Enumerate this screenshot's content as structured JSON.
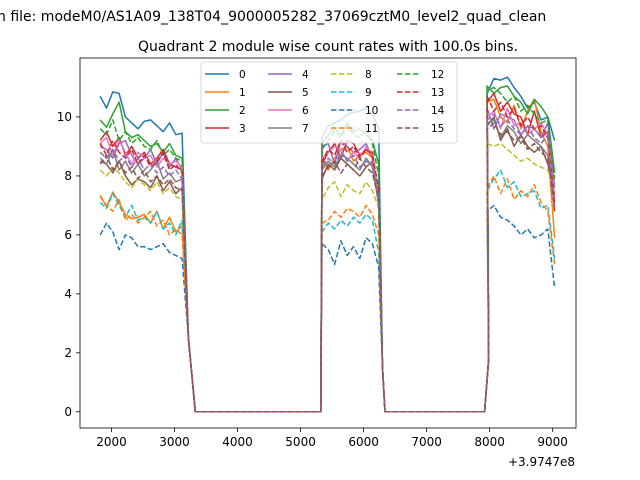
{
  "header": {
    "file_line": "n file: modeM0/AS1A09_138T04_9000005282_37069cztM0_level2_quad_clean",
    "title": "Quadrant 2 module wise count rates with 100.0s bins."
  },
  "chart_data": {
    "type": "line",
    "title": "Quadrant 2 module wise count rates with 100.0s bins.",
    "xlabel": "",
    "ylabel": "",
    "x_offset_label": "+3.9747e8",
    "xlim": [
      1500,
      9370
    ],
    "ylim": [
      -0.55,
      12.0
    ],
    "xticks": [
      2000,
      3000,
      4000,
      5000,
      6000,
      7000,
      8000,
      9000
    ],
    "xtick_labels": [
      "2000",
      "3000",
      "4000",
      "5000",
      "6000",
      "7000",
      "8000",
      "9000"
    ],
    "yticks": [
      0,
      2,
      4,
      6,
      8,
      10
    ],
    "ytick_labels": [
      "0",
      "2",
      "4",
      "6",
      "8",
      "10"
    ],
    "legend": {
      "position": "top-center",
      "columns": 4
    },
    "segments": [
      {
        "start": 1820,
        "gap": [
          3220,
          3320
        ],
        "n": 14
      },
      {
        "start": 5340,
        "gap": [
          5300,
          5420
        ],
        "n": 10,
        "end": 6240
      },
      {
        "start": 7960,
        "n": 11,
        "end": 9030
      }
    ],
    "series": [
      {
        "name": "0",
        "color": "#1f77b4",
        "dash": "solid",
        "seg1": [
          10.7,
          10.3,
          10.85,
          10.8,
          10.0,
          9.8,
          9.6,
          9.85,
          9.9,
          9.7,
          9.5,
          9.8,
          9.4,
          9.45
        ],
        "seg2": [
          9.3,
          9.7,
          9.8,
          9.9,
          10.1,
          10.15,
          10.2,
          10.3,
          10.1,
          9.6
        ],
        "seg3": [
          10.8,
          11.3,
          11.25,
          11.35,
          11.0,
          10.7,
          10.3,
          10.5,
          9.9,
          10.0,
          9.2
        ]
      },
      {
        "name": "1",
        "color": "#ff7f0e",
        "dash": "solid",
        "seg1": [
          7.35,
          6.95,
          7.45,
          7.1,
          6.7,
          6.55,
          6.6,
          6.7,
          6.4,
          6.8,
          6.2,
          6.6,
          6.1,
          6.3
        ],
        "seg2": [
          8.6,
          8.2,
          8.6,
          8.9,
          9.0,
          8.5,
          8.7,
          8.8,
          8.6,
          7.4
        ],
        "seg3": [
          10.5,
          10.6,
          10.0,
          9.8,
          10.4,
          9.6,
          10.2,
          10.6,
          9.5,
          9.0,
          5.9
        ]
      },
      {
        "name": "2",
        "color": "#2ca02c",
        "dash": "solid",
        "seg1": [
          9.9,
          9.65,
          10.1,
          10.5,
          9.5,
          9.3,
          9.4,
          9.2,
          9.0,
          9.1,
          8.8,
          9.1,
          8.7,
          8.6
        ],
        "seg2": [
          9.1,
          9.4,
          9.6,
          9.4,
          9.8,
          9.5,
          9.6,
          9.4,
          9.2,
          8.4
        ],
        "seg3": [
          11.05,
          10.8,
          11.0,
          11.05,
          10.7,
          10.5,
          10.1,
          10.6,
          10.35,
          10.0,
          8.1
        ]
      },
      {
        "name": "3",
        "color": "#d62728",
        "dash": "solid",
        "seg1": [
          9.2,
          9.5,
          9.0,
          9.3,
          8.7,
          9.0,
          8.6,
          8.8,
          8.4,
          8.6,
          8.9,
          8.4,
          8.3,
          8.2
        ],
        "seg2": [
          8.4,
          8.8,
          9.1,
          8.6,
          9.2,
          9.1,
          8.7,
          8.9,
          8.8,
          7.3
        ],
        "seg3": [
          10.5,
          10.8,
          10.2,
          10.5,
          10.1,
          10.0,
          9.4,
          10.2,
          9.3,
          9.5,
          6.8
        ]
      },
      {
        "name": "4",
        "color": "#9467bd",
        "dash": "solid",
        "seg1": [
          9.0,
          8.9,
          8.6,
          9.1,
          9.2,
          8.7,
          8.4,
          8.6,
          8.9,
          8.4,
          8.8,
          8.3,
          8.6,
          8.2
        ],
        "seg2": [
          9.0,
          9.1,
          8.4,
          9.2,
          9.0,
          8.8,
          8.9,
          9.1,
          8.6,
          7.0
        ],
        "seg3": [
          10.3,
          9.6,
          10.1,
          10.0,
          9.9,
          9.4,
          9.7,
          9.6,
          9.3,
          9.8,
          7.6
        ]
      },
      {
        "name": "5",
        "color": "#8c564b",
        "dash": "solid",
        "seg1": [
          8.5,
          8.4,
          8.1,
          8.5,
          8.0,
          7.7,
          7.9,
          7.8,
          7.6,
          8.0,
          7.5,
          7.8,
          7.4,
          7.6
        ],
        "seg2": [
          7.9,
          8.4,
          8.2,
          8.6,
          8.4,
          8.2,
          8.0,
          8.3,
          8.5,
          7.0
        ],
        "seg3": [
          9.7,
          10.0,
          9.2,
          9.6,
          9.0,
          9.4,
          9.0,
          8.8,
          9.0,
          8.4,
          7.4
        ]
      },
      {
        "name": "6",
        "color": "#e377c2",
        "dash": "solid",
        "seg1": [
          9.1,
          9.3,
          8.7,
          9.2,
          8.8,
          8.4,
          8.8,
          8.6,
          8.7,
          8.3,
          8.6,
          8.4,
          8.5,
          8.3
        ],
        "seg2": [
          8.6,
          8.8,
          9.0,
          8.9,
          8.5,
          8.8,
          8.6,
          9.0,
          8.7,
          7.4
        ],
        "seg3": [
          10.0,
          10.2,
          9.6,
          10.3,
          9.7,
          9.8,
          9.4,
          9.6,
          9.8,
          9.4,
          7.2
        ]
      },
      {
        "name": "7",
        "color": "#7f7f7f",
        "dash": "solid",
        "seg1": [
          8.6,
          8.4,
          8.9,
          8.2,
          8.5,
          8.1,
          8.4,
          8.0,
          8.2,
          8.5,
          7.9,
          8.1,
          7.8,
          7.9
        ],
        "seg2": [
          8.2,
          8.5,
          8.3,
          8.7,
          8.6,
          8.4,
          8.2,
          8.6,
          8.3,
          7.1
        ],
        "seg3": [
          9.8,
          9.9,
          9.3,
          9.7,
          9.5,
          9.1,
          9.4,
          9.2,
          9.0,
          8.7,
          7.0
        ]
      },
      {
        "name": "8",
        "color": "#bcbd22",
        "dash": "dashed",
        "seg1": [
          8.2,
          8.0,
          8.3,
          8.1,
          7.8,
          7.6,
          7.9,
          7.7,
          7.5,
          7.8,
          7.4,
          7.6,
          7.3,
          7.2
        ],
        "seg2": [
          7.2,
          7.6,
          7.8,
          7.3,
          7.7,
          7.5,
          7.4,
          7.8,
          7.5,
          6.9
        ],
        "seg3": [
          9.1,
          9.0,
          9.1,
          8.9,
          8.7,
          8.5,
          8.6,
          8.4,
          8.3,
          8.2,
          7.5
        ]
      },
      {
        "name": "9",
        "color": "#17becf",
        "dash": "dashed",
        "seg1": [
          7.1,
          6.9,
          7.4,
          7.0,
          6.6,
          7.0,
          6.5,
          6.6,
          6.4,
          6.8,
          6.2,
          6.4,
          6.0,
          6.5
        ],
        "seg2": [
          6.1,
          6.4,
          6.2,
          6.5,
          6.3,
          6.6,
          6.4,
          6.7,
          6.5,
          5.4
        ],
        "seg3": [
          7.5,
          7.9,
          8.2,
          7.6,
          7.8,
          7.3,
          7.4,
          7.5,
          6.9,
          7.0,
          5.2
        ]
      },
      {
        "name": "10",
        "color": "#1f77b4",
        "dash": "dashed",
        "seg1": [
          6.0,
          6.4,
          6.1,
          5.5,
          6.0,
          5.9,
          5.6,
          5.6,
          5.5,
          5.6,
          5.7,
          5.4,
          5.3,
          5.2
        ],
        "seg2": [
          5.7,
          5.5,
          5.0,
          5.8,
          5.3,
          5.6,
          5.2,
          5.9,
          5.7,
          4.9
        ],
        "seg3": [
          6.8,
          7.0,
          6.6,
          6.5,
          6.3,
          6.0,
          6.2,
          5.9,
          6.0,
          6.2,
          4.2
        ]
      },
      {
        "name": "11",
        "color": "#ff7f0e",
        "dash": "dashed",
        "seg1": [
          7.3,
          7.0,
          6.8,
          7.2,
          6.5,
          6.7,
          6.4,
          6.6,
          6.8,
          6.3,
          6.5,
          6.0,
          6.2,
          6.0
        ],
        "seg2": [
          6.4,
          6.5,
          6.8,
          6.6,
          6.9,
          6.8,
          6.6,
          7.0,
          6.7,
          6.0
        ],
        "seg3": [
          7.6,
          8.0,
          7.4,
          7.9,
          7.2,
          7.5,
          7.3,
          7.7,
          7.1,
          6.8,
          5.0
        ]
      },
      {
        "name": "12",
        "color": "#2ca02c",
        "dash": "dashed",
        "seg1": [
          9.6,
          9.4,
          9.9,
          9.2,
          9.5,
          9.1,
          9.3,
          9.0,
          8.9,
          9.2,
          8.7,
          8.9,
          8.6,
          8.5
        ],
        "seg2": [
          8.9,
          9.2,
          9.5,
          9.3,
          9.7,
          9.4,
          9.3,
          9.6,
          9.1,
          8.0
        ],
        "seg3": [
          10.9,
          11.0,
          10.8,
          10.5,
          10.7,
          10.2,
          10.4,
          10.1,
          9.8,
          9.9,
          7.9
        ]
      },
      {
        "name": "13",
        "color": "#d62728",
        "dash": "dashed",
        "seg1": [
          9.1,
          8.7,
          9.2,
          8.8,
          8.6,
          8.9,
          8.4,
          8.7,
          8.3,
          8.5,
          8.8,
          8.2,
          8.4,
          8.1
        ],
        "seg2": [
          8.5,
          8.9,
          8.7,
          9.2,
          8.8,
          9.0,
          8.6,
          8.9,
          8.7,
          7.6
        ],
        "seg3": [
          10.7,
          10.2,
          10.5,
          10.0,
          10.3,
          9.7,
          10.0,
          9.6,
          9.7,
          9.3,
          7.1
        ]
      },
      {
        "name": "14",
        "color": "#9467bd",
        "dash": "dashed",
        "seg1": [
          8.8,
          8.6,
          8.9,
          8.5,
          8.7,
          8.3,
          8.6,
          8.2,
          8.4,
          8.1,
          8.3,
          8.0,
          8.2,
          7.9
        ],
        "seg2": [
          8.3,
          8.6,
          8.4,
          8.8,
          8.5,
          8.7,
          8.3,
          8.5,
          8.4,
          7.3
        ],
        "seg3": [
          9.9,
          10.1,
          9.7,
          9.9,
          9.6,
          9.4,
          9.7,
          9.3,
          9.1,
          9.4,
          6.8
        ]
      },
      {
        "name": "15",
        "color": "#8c564b",
        "dash": "dashed",
        "seg1": [
          8.4,
          8.7,
          8.2,
          8.5,
          8.1,
          8.3,
          7.9,
          8.2,
          7.8,
          8.0,
          7.7,
          7.9,
          7.6,
          7.5
        ],
        "seg2": [
          8.0,
          8.3,
          8.5,
          8.1,
          8.4,
          8.2,
          8.6,
          8.3,
          8.1,
          7.2
        ],
        "seg3": [
          9.6,
          9.8,
          9.4,
          9.5,
          9.2,
          9.3,
          8.9,
          9.1,
          8.8,
          8.6,
          6.9
        ]
      }
    ]
  }
}
